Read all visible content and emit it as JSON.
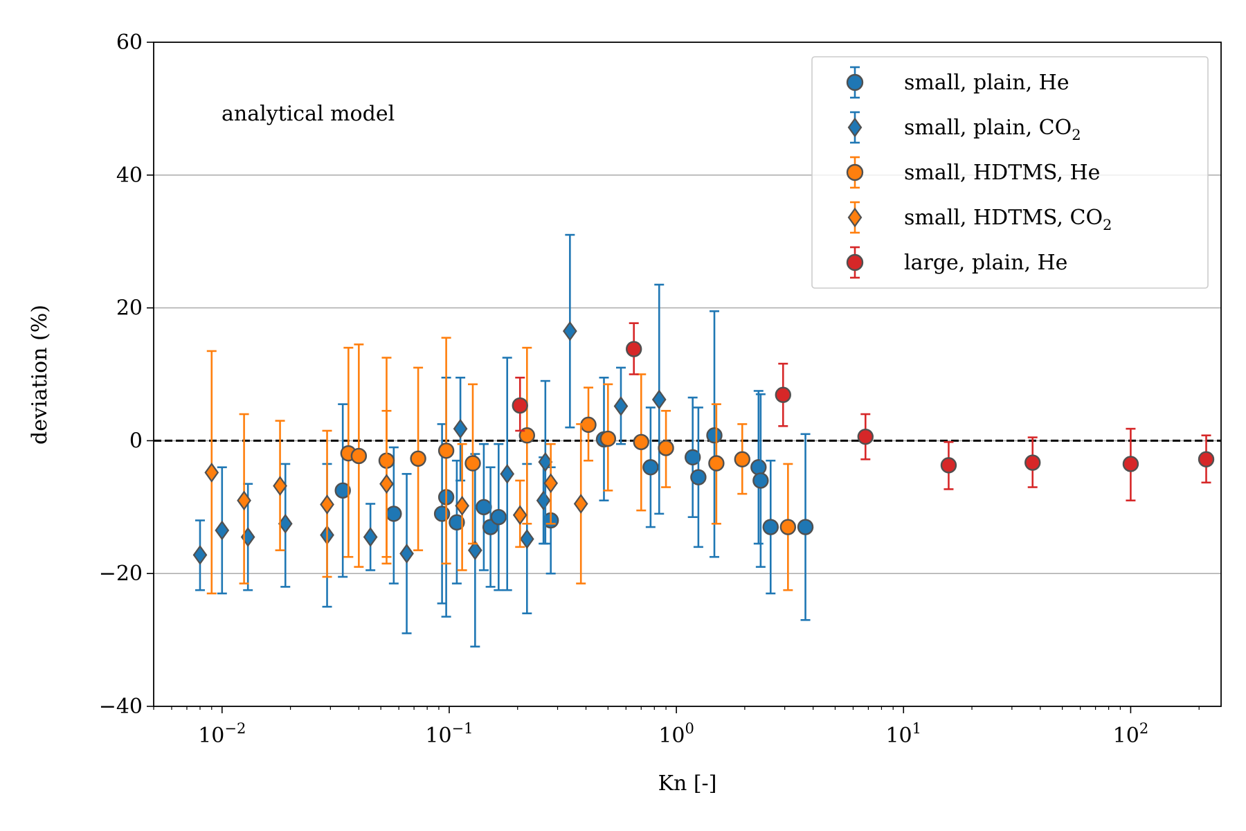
{
  "chart_data": {
    "type": "scatter",
    "title": "",
    "xlabel": "Kn [-]",
    "ylabel": "deviation (%)",
    "xscale": "log",
    "xlim": [
      0.005,
      250
    ],
    "ylim": [
      -40,
      60
    ],
    "yticks": [
      -40,
      -20,
      0,
      20,
      40,
      60
    ],
    "ytick_labels": [
      "−40",
      "−20",
      "0",
      "20",
      "40",
      "60"
    ],
    "xticks": [
      0.01,
      0.1,
      1,
      10,
      100
    ],
    "xtick_labels": [
      {
        "base": "10",
        "exp": "−2"
      },
      {
        "base": "10",
        "exp": "−1"
      },
      {
        "base": "10",
        "exp": "0"
      },
      {
        "base": "10",
        "exp": "1"
      },
      {
        "base": "10",
        "exp": "2"
      }
    ],
    "grid": "horizontal",
    "reference_line": {
      "y": 0,
      "style": "dashed",
      "color": "#000000"
    },
    "annotation": "analytical model",
    "legend_position": "top-right",
    "series": [
      {
        "name": "small, plain, He",
        "legend_main": "small, plain, He",
        "legend_sub": "",
        "marker": "circle",
        "color": "#1f77b4",
        "errcolor": "#1f77b4",
        "points": [
          {
            "x": 0.034,
            "y": -7.5,
            "lo": -20.5,
            "hi": 5.5
          },
          {
            "x": 0.057,
            "y": -11,
            "lo": -21.5,
            "hi": -1
          },
          {
            "x": 0.093,
            "y": -11,
            "lo": -24.5,
            "hi": 2.5
          },
          {
            "x": 0.097,
            "y": -8.5,
            "lo": -26.5,
            "hi": 9.5
          },
          {
            "x": 0.108,
            "y": -12.3,
            "lo": -21.5,
            "hi": -3
          },
          {
            "x": 0.142,
            "y": -10,
            "lo": -19.5,
            "hi": -0.5
          },
          {
            "x": 0.152,
            "y": -13,
            "lo": -22,
            "hi": -4
          },
          {
            "x": 0.165,
            "y": -11.5,
            "lo": -22.5,
            "hi": -0.5
          },
          {
            "x": 0.28,
            "y": -12,
            "lo": -20,
            "hi": -4
          },
          {
            "x": 0.48,
            "y": 0.2,
            "lo": -9,
            "hi": 9.5
          },
          {
            "x": 0.77,
            "y": -4,
            "lo": -13,
            "hi": 5
          },
          {
            "x": 1.18,
            "y": -2.5,
            "lo": -11.5,
            "hi": 6.5
          },
          {
            "x": 1.25,
            "y": -5.5,
            "lo": -16,
            "hi": 5
          },
          {
            "x": 1.47,
            "y": 0.8,
            "lo": -17.5,
            "hi": 19.5
          },
          {
            "x": 2.3,
            "y": -4,
            "lo": -15.5,
            "hi": 7.5
          },
          {
            "x": 2.35,
            "y": -6,
            "lo": -19,
            "hi": 7
          },
          {
            "x": 2.6,
            "y": -13,
            "lo": -23,
            "hi": -3
          },
          {
            "x": 3.7,
            "y": -13,
            "lo": -27,
            "hi": 1
          }
        ]
      },
      {
        "name": "small, plain, CO2",
        "legend_main": "small, plain, CO",
        "legend_sub": "2",
        "marker": "diamond",
        "color": "#1f77b4",
        "errcolor": "#1f77b4",
        "points": [
          {
            "x": 0.008,
            "y": -17.2,
            "lo": -22.5,
            "hi": -12
          },
          {
            "x": 0.01,
            "y": -13.5,
            "lo": -23,
            "hi": -4
          },
          {
            "x": 0.013,
            "y": -14.5,
            "lo": -22.5,
            "hi": -6.5
          },
          {
            "x": 0.019,
            "y": -12.5,
            "lo": -22,
            "hi": -3.5
          },
          {
            "x": 0.029,
            "y": -14.2,
            "lo": -25,
            "hi": -3.5
          },
          {
            "x": 0.045,
            "y": -14.5,
            "lo": -19.5,
            "hi": -9.5
          },
          {
            "x": 0.065,
            "y": -17,
            "lo": -29,
            "hi": -5
          },
          {
            "x": 0.112,
            "y": 1.8,
            "lo": -6,
            "hi": 9.5
          },
          {
            "x": 0.13,
            "y": -16.5,
            "lo": -31,
            "hi": -2
          },
          {
            "x": 0.18,
            "y": -5,
            "lo": -22.5,
            "hi": 12.5
          },
          {
            "x": 0.22,
            "y": -14.8,
            "lo": -26,
            "hi": -3.5
          },
          {
            "x": 0.26,
            "y": -9,
            "lo": -15.5,
            "hi": -2.5
          },
          {
            "x": 0.265,
            "y": -3.2,
            "lo": -15.5,
            "hi": 9
          },
          {
            "x": 0.34,
            "y": 16.5,
            "lo": 2,
            "hi": 31
          },
          {
            "x": 0.57,
            "y": 5.2,
            "lo": -0.5,
            "hi": 11
          },
          {
            "x": 0.84,
            "y": 6.2,
            "lo": -11,
            "hi": 23.5
          }
        ]
      },
      {
        "name": "small, HDTMS, He",
        "legend_main": "small, HDTMS, He",
        "legend_sub": "",
        "marker": "circle",
        "color": "#ff7f0e",
        "errcolor": "#ff7f0e",
        "points": [
          {
            "x": 0.036,
            "y": -1.9,
            "lo": -17.5,
            "hi": 14
          },
          {
            "x": 0.04,
            "y": -2.3,
            "lo": -19,
            "hi": 14.5
          },
          {
            "x": 0.053,
            "y": -3,
            "lo": -18.5,
            "hi": 12.5
          },
          {
            "x": 0.073,
            "y": -2.7,
            "lo": -16.5,
            "hi": 11
          },
          {
            "x": 0.097,
            "y": -1.5,
            "lo": -18.5,
            "hi": 15.5
          },
          {
            "x": 0.127,
            "y": -3.4,
            "lo": -15.5,
            "hi": 8.5
          },
          {
            "x": 0.22,
            "y": 0.8,
            "lo": -12.5,
            "hi": 14
          },
          {
            "x": 0.41,
            "y": 2.4,
            "lo": -3,
            "hi": 8
          },
          {
            "x": 0.5,
            "y": 0.3,
            "lo": -7.5,
            "hi": 8.5
          },
          {
            "x": 0.7,
            "y": -0.2,
            "lo": -10.5,
            "hi": 10
          },
          {
            "x": 0.9,
            "y": -1.1,
            "lo": -7,
            "hi": 4.5
          },
          {
            "x": 1.5,
            "y": -3.4,
            "lo": -12.5,
            "hi": 5.5
          },
          {
            "x": 1.95,
            "y": -2.8,
            "lo": -8,
            "hi": 2.5
          },
          {
            "x": 3.1,
            "y": -13,
            "lo": -22.5,
            "hi": -3.5
          }
        ]
      },
      {
        "name": "small, HDTMS, CO2",
        "legend_main": "small, HDTMS, CO",
        "legend_sub": "2",
        "marker": "diamond",
        "color": "#ff7f0e",
        "errcolor": "#ff7f0e",
        "points": [
          {
            "x": 0.009,
            "y": -4.8,
            "lo": -23,
            "hi": 13.5
          },
          {
            "x": 0.0125,
            "y": -9,
            "lo": -21.5,
            "hi": 4
          },
          {
            "x": 0.018,
            "y": -6.8,
            "lo": -16.5,
            "hi": 3
          },
          {
            "x": 0.029,
            "y": -9.6,
            "lo": -20.5,
            "hi": 1.5
          },
          {
            "x": 0.053,
            "y": -6.5,
            "lo": -17.5,
            "hi": 4.5
          },
          {
            "x": 0.114,
            "y": -9.8,
            "lo": -19.5,
            "hi": -0.5
          },
          {
            "x": 0.205,
            "y": -11.2,
            "lo": -16,
            "hi": -6
          },
          {
            "x": 0.28,
            "y": -6.4,
            "lo": -12.5,
            "hi": -0.5
          },
          {
            "x": 0.38,
            "y": -9.5,
            "lo": -21.5,
            "hi": 2.5
          }
        ]
      },
      {
        "name": "large, plain, He",
        "legend_main": "large, plain, He",
        "legend_sub": "",
        "marker": "circle",
        "color": "#d62728",
        "errcolor": "#d62728",
        "points": [
          {
            "x": 0.205,
            "y": 5.3,
            "lo": 1.5,
            "hi": 9.5
          },
          {
            "x": 0.65,
            "y": 13.8,
            "lo": 10,
            "hi": 17.7
          },
          {
            "x": 2.95,
            "y": 6.9,
            "lo": 2.2,
            "hi": 11.6
          },
          {
            "x": 6.8,
            "y": 0.6,
            "lo": -2.8,
            "hi": 4
          },
          {
            "x": 15.8,
            "y": -3.7,
            "lo": -7.3,
            "hi": -0.2
          },
          {
            "x": 37,
            "y": -3.3,
            "lo": -7,
            "hi": 0.5
          },
          {
            "x": 100,
            "y": -3.5,
            "lo": -9,
            "hi": 1.8
          },
          {
            "x": 215,
            "y": -2.8,
            "lo": -6.3,
            "hi": 0.8
          }
        ]
      }
    ]
  }
}
